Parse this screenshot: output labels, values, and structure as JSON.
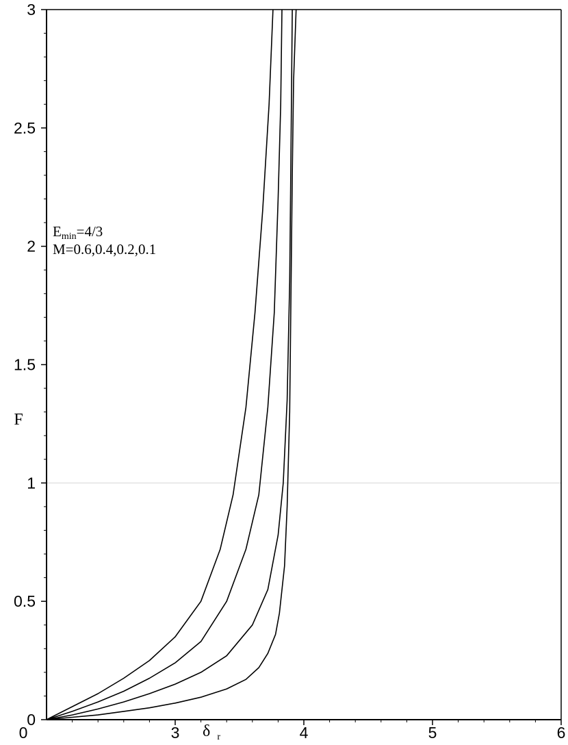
{
  "chart_data": {
    "type": "line",
    "xlabel": "δ",
    "xlabel_subscript": "r",
    "ylabel": "F",
    "xlim": [
      2,
      6
    ],
    "ylim": [
      0,
      3
    ],
    "x_ticks": [
      3,
      4,
      5,
      6
    ],
    "x_tick_labels": [
      "3",
      "4",
      "5",
      "6"
    ],
    "y_ticks": [
      0,
      0.5,
      1,
      1.5,
      2,
      2.5,
      3
    ],
    "y_tick_labels": [
      "0",
      "0.5",
      "1",
      "1.5",
      "2",
      "2.5",
      "3"
    ],
    "x_origin_label": "0",
    "reference_line_y": 1,
    "annotations": [
      {
        "line": 1,
        "main": "E",
        "subscript": "min",
        "rest": "=4/3"
      },
      {
        "line": 2,
        "main": "M=0.6,0.4,0.2,0.1",
        "subscript": "",
        "rest": ""
      }
    ],
    "series": [
      {
        "points": [
          [
            2.0,
            0.0
          ],
          [
            2.2,
            0.055
          ],
          [
            2.4,
            0.11
          ],
          [
            2.6,
            0.175
          ],
          [
            2.8,
            0.25
          ],
          [
            3.0,
            0.35
          ],
          [
            3.2,
            0.5
          ],
          [
            3.35,
            0.72
          ],
          [
            3.45,
            0.95
          ],
          [
            3.55,
            1.32
          ],
          [
            3.62,
            1.72
          ],
          [
            3.68,
            2.15
          ],
          [
            3.73,
            2.6
          ],
          [
            3.76,
            3.0
          ]
        ]
      },
      {
        "points": [
          [
            2.0,
            0.0
          ],
          [
            2.2,
            0.035
          ],
          [
            2.4,
            0.075
          ],
          [
            2.6,
            0.12
          ],
          [
            2.8,
            0.175
          ],
          [
            3.0,
            0.24
          ],
          [
            3.2,
            0.33
          ],
          [
            3.4,
            0.5
          ],
          [
            3.55,
            0.72
          ],
          [
            3.65,
            0.95
          ],
          [
            3.72,
            1.32
          ],
          [
            3.77,
            1.72
          ],
          [
            3.8,
            2.2
          ],
          [
            3.82,
            2.6
          ],
          [
            3.83,
            3.0
          ]
        ]
      },
      {
        "points": [
          [
            2.0,
            0.0
          ],
          [
            2.2,
            0.02
          ],
          [
            2.4,
            0.045
          ],
          [
            2.6,
            0.075
          ],
          [
            2.8,
            0.11
          ],
          [
            3.0,
            0.15
          ],
          [
            3.2,
            0.2
          ],
          [
            3.4,
            0.27
          ],
          [
            3.6,
            0.4
          ],
          [
            3.72,
            0.55
          ],
          [
            3.8,
            0.78
          ],
          [
            3.84,
            1.0
          ],
          [
            3.87,
            1.35
          ],
          [
            3.89,
            1.85
          ],
          [
            3.9,
            2.4
          ],
          [
            3.91,
            3.0
          ]
        ]
      },
      {
        "points": [
          [
            2.0,
            0.0
          ],
          [
            2.2,
            0.01
          ],
          [
            2.4,
            0.02
          ],
          [
            2.6,
            0.035
          ],
          [
            2.8,
            0.05
          ],
          [
            3.0,
            0.07
          ],
          [
            3.2,
            0.095
          ],
          [
            3.4,
            0.13
          ],
          [
            3.55,
            0.17
          ],
          [
            3.65,
            0.22
          ],
          [
            3.72,
            0.28
          ],
          [
            3.78,
            0.36
          ],
          [
            3.81,
            0.45
          ],
          [
            3.85,
            0.65
          ],
          [
            3.87,
            0.9
          ],
          [
            3.89,
            1.3
          ],
          [
            3.9,
            1.8
          ],
          [
            3.91,
            2.3
          ],
          [
            3.92,
            2.7
          ],
          [
            3.94,
            3.0
          ]
        ]
      }
    ]
  }
}
